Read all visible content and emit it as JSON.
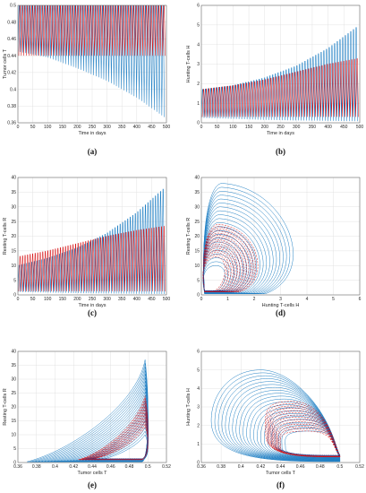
{
  "colors": {
    "blue": "#1f7fc4",
    "red": "#d7191c",
    "navy": "#2b2f7a",
    "grid": "#dcdcdc",
    "axis": "#555555"
  },
  "chart_data": [
    {
      "caption": "(a)",
      "type": "line",
      "xlabel": "Time in days",
      "ylabel": "Tumor cells T",
      "xlim": [
        0,
        500
      ],
      "ylim": [
        0.36,
        0.5
      ],
      "xticks": [
        0,
        50,
        100,
        150,
        200,
        250,
        300,
        350,
        400,
        450,
        500
      ],
      "yticks": [
        0.36,
        0.38,
        0.4,
        0.42,
        0.44,
        0.46,
        0.48,
        0.5
      ],
      "grid": true,
      "series": [
        {
          "color": "blue",
          "period": 8.5,
          "envelope_t": [
            0,
            100,
            200,
            300,
            400,
            500
          ],
          "upper": [
            0.5,
            0.5,
            0.5,
            0.5,
            0.5,
            0.5
          ],
          "lower": [
            0.445,
            0.438,
            0.425,
            0.41,
            0.39,
            0.365
          ]
        },
        {
          "color": "red",
          "period": 8.5,
          "envelope_t": [
            0,
            500
          ],
          "upper": [
            0.5,
            0.5
          ],
          "lower": [
            0.44,
            0.44
          ]
        }
      ]
    },
    {
      "caption": "(b)",
      "type": "line",
      "xlabel": "Time in days",
      "ylabel": "Hunting T-cells H",
      "xlim": [
        0,
        500
      ],
      "ylim": [
        0,
        6
      ],
      "xticks": [
        0,
        50,
        100,
        150,
        200,
        250,
        300,
        350,
        400,
        450,
        500
      ],
      "yticks": [
        0,
        1,
        2,
        3,
        4,
        5,
        6
      ],
      "grid": true,
      "series": [
        {
          "color": "blue",
          "period": 8.5,
          "envelope_t": [
            0,
            100,
            200,
            300,
            400,
            500
          ],
          "upper": [
            1.7,
            1.9,
            2.3,
            2.9,
            3.8,
            5.0
          ],
          "lower": [
            0.25,
            0.2,
            0.15,
            0.12,
            0.1,
            0.08
          ]
        },
        {
          "color": "red",
          "period": 8.5,
          "envelope_t": [
            0,
            100,
            200,
            300,
            400,
            500
          ],
          "upper": [
            1.7,
            1.9,
            2.2,
            2.6,
            3.0,
            3.3
          ],
          "lower": [
            0.3,
            0.3,
            0.3,
            0.3,
            0.3,
            0.3
          ]
        }
      ]
    },
    {
      "caption": "(c)",
      "type": "line",
      "xlabel": "Time in days",
      "ylabel": "Resting T-cells R",
      "xlim": [
        0,
        500
      ],
      "ylim": [
        0,
        40
      ],
      "xticks": [
        0,
        50,
        100,
        150,
        200,
        250,
        300,
        350,
        400,
        450,
        500
      ],
      "yticks": [
        0,
        5,
        10,
        15,
        20,
        25,
        30,
        35,
        40
      ],
      "grid": true,
      "series": [
        {
          "color": "blue",
          "period": 8.5,
          "envelope_t": [
            0,
            100,
            200,
            300,
            400,
            500
          ],
          "upper": [
            10,
            12.5,
            16,
            21,
            28,
            37
          ],
          "lower": [
            1,
            0.8,
            0.6,
            0.5,
            0.4,
            0.3
          ]
        },
        {
          "color": "red",
          "period": 8.5,
          "envelope_t": [
            0,
            100,
            200,
            300,
            400,
            500
          ],
          "upper": [
            13,
            15,
            17.5,
            20,
            22,
            23.5
          ],
          "lower": [
            1.2,
            1.2,
            1.2,
            1.2,
            1.2,
            1.2
          ]
        }
      ]
    },
    {
      "caption": "(d)",
      "type": "line",
      "xlabel": "Hunting T-cells H",
      "ylabel": "Resting T-cells R",
      "xlim": [
        0,
        6
      ],
      "ylim": [
        0,
        40
      ],
      "xticks": [
        0,
        1,
        2,
        3,
        4,
        5,
        6
      ],
      "yticks": [
        0,
        5,
        10,
        15,
        20,
        25,
        30,
        35,
        40
      ],
      "grid": true,
      "loops": [
        {
          "color": "blue",
          "style": "solid",
          "count": 22,
          "center_x": [
            0.8,
            1.3
          ],
          "width": [
            0.7,
            4.3
          ],
          "peak_y": [
            10,
            38
          ],
          "base_y": [
            1,
            0.4
          ]
        },
        {
          "color": "red",
          "style": "dashed",
          "count": 16,
          "center_x": [
            0.8,
            1.0
          ],
          "width": [
            0.7,
            2.5
          ],
          "peak_y": [
            13,
            24
          ],
          "base_y": [
            1.3,
            1.0
          ]
        },
        {
          "color": "navy",
          "style": "dotted",
          "count": 8,
          "center_x": [
            0.9,
            1.1
          ],
          "width": [
            1.2,
            2.3
          ],
          "peak_y": [
            15,
            23
          ],
          "base_y": [
            1.5,
            1.2
          ]
        }
      ]
    },
    {
      "caption": "(e)",
      "type": "line",
      "xlabel": "Tumor cells T",
      "ylabel": "Resting T-cells R",
      "xlim": [
        0.36,
        0.52
      ],
      "ylim": [
        0,
        40
      ],
      "xticks": [
        0.36,
        0.38,
        0.4,
        0.42,
        0.44,
        0.46,
        0.48,
        0.5,
        0.52
      ],
      "yticks": [
        0,
        5,
        10,
        15,
        20,
        25,
        30,
        35,
        40
      ],
      "grid": true,
      "loops": [
        {
          "color": "blue",
          "style": "solid",
          "count": 22,
          "left_x": [
            0.445,
            0.37
          ],
          "right_x": [
            0.5,
            0.5
          ],
          "peak_y": [
            10,
            37
          ],
          "base_y": [
            0.8,
            0.3
          ]
        },
        {
          "color": "red",
          "style": "dashed",
          "count": 14,
          "left_x": [
            0.44,
            0.425
          ],
          "right_x": [
            0.5,
            0.5
          ],
          "peak_y": [
            13,
            24
          ],
          "base_y": [
            1.2,
            1.0
          ]
        },
        {
          "color": "navy",
          "style": "dotted",
          "count": 6,
          "left_x": [
            0.44,
            0.43
          ],
          "right_x": [
            0.5,
            0.5
          ],
          "peak_y": [
            15,
            22
          ],
          "base_y": [
            1.4,
            1.2
          ]
        }
      ]
    },
    {
      "caption": "(f)",
      "type": "line",
      "xlabel": "Tumor cells T",
      "ylabel": "Hunting T-cells H",
      "xlim": [
        0.36,
        0.52
      ],
      "ylim": [
        0,
        6
      ],
      "xticks": [
        0.36,
        0.38,
        0.4,
        0.42,
        0.44,
        0.46,
        0.48,
        0.5,
        0.52
      ],
      "yticks": [
        0,
        1,
        2,
        3,
        4,
        5,
        6
      ],
      "grid": true,
      "loops": [
        {
          "color": "blue",
          "style": "solid",
          "count": 22,
          "left_x": [
            0.445,
            0.37
          ],
          "right_x": [
            0.5,
            0.5
          ],
          "top_y": [
            1.7,
            5.0
          ],
          "bottom_y": [
            0.3,
            0.05
          ],
          "top_peak_x": [
            0.47,
            0.42
          ]
        },
        {
          "color": "red",
          "style": "dashed",
          "count": 14,
          "left_x": [
            0.44,
            0.425
          ],
          "right_x": [
            0.5,
            0.5
          ],
          "top_y": [
            1.7,
            3.3
          ],
          "bottom_y": [
            0.35,
            0.3
          ],
          "top_peak_x": [
            0.465,
            0.45
          ]
        },
        {
          "color": "navy",
          "style": "dotted",
          "count": 6,
          "left_x": [
            0.44,
            0.43
          ],
          "right_x": [
            0.5,
            0.5
          ],
          "top_y": [
            1.9,
            3.0
          ],
          "bottom_y": [
            0.4,
            0.35
          ],
          "top_peak_x": [
            0.465,
            0.455
          ]
        }
      ]
    }
  ]
}
